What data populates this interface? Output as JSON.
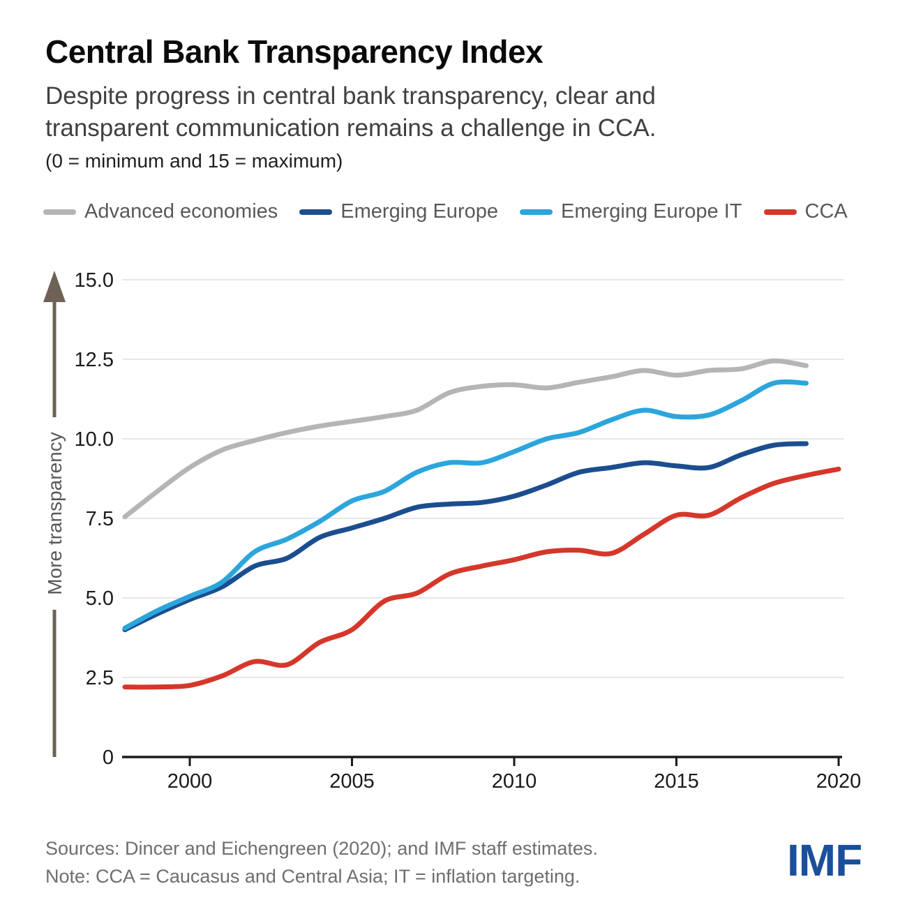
{
  "header": {
    "title": "Central Bank Transparency Index",
    "subtitle_line1": "Despite progress in central bank transparency, clear and",
    "subtitle_line2": "transparent communication remains a challenge in CCA.",
    "scale_note": "(0 = minimum and 15 = maximum)"
  },
  "chart_data": {
    "type": "line",
    "title": "Central Bank Transparency Index",
    "x": [
      1998,
      1999,
      2000,
      2001,
      2002,
      2003,
      2004,
      2005,
      2006,
      2007,
      2008,
      2009,
      2010,
      2011,
      2012,
      2013,
      2014,
      2015,
      2016,
      2017,
      2018,
      2019,
      2020
    ],
    "x_ticks": [
      2000,
      2005,
      2010,
      2015,
      2020
    ],
    "ylim": [
      0,
      15
    ],
    "y_ticks": [
      0,
      2.5,
      5,
      7.5,
      10,
      12.5,
      15
    ],
    "y_tick_labels": [
      "0",
      "2.5",
      "5.0",
      "7.5",
      "10.0",
      "12.5",
      "15.0"
    ],
    "ylabel": "More transparency",
    "grid": "horizontal",
    "legend_position": "top",
    "series": [
      {
        "name": "Advanced economies",
        "color": "#b5b5b5",
        "values": [
          7.55,
          8.35,
          9.1,
          9.65,
          9.95,
          10.2,
          10.4,
          10.55,
          10.7,
          10.9,
          11.45,
          11.65,
          11.7,
          11.6,
          11.78,
          11.95,
          12.15,
          12.0,
          12.15,
          12.2,
          12.45,
          12.3,
          null
        ]
      },
      {
        "name": "Emerging Europe",
        "color": "#1b4e8f",
        "values": [
          4.0,
          4.5,
          4.95,
          5.35,
          6.0,
          6.25,
          6.9,
          7.2,
          7.5,
          7.85,
          7.95,
          8.0,
          8.2,
          8.55,
          8.95,
          9.1,
          9.25,
          9.15,
          9.1,
          9.5,
          9.8,
          9.85,
          null
        ]
      },
      {
        "name": "Emerging Europe IT",
        "color": "#2ca5dc",
        "values": [
          4.05,
          4.6,
          5.05,
          5.5,
          6.45,
          6.85,
          7.4,
          8.05,
          8.35,
          8.95,
          9.25,
          9.25,
          9.6,
          10.0,
          10.2,
          10.6,
          10.9,
          10.7,
          10.75,
          11.2,
          11.75,
          11.75,
          null
        ]
      },
      {
        "name": "CCA",
        "color": "#d5372b",
        "values": [
          2.2,
          2.2,
          2.25,
          2.55,
          3.0,
          2.9,
          3.6,
          4.0,
          4.9,
          5.15,
          5.75,
          6.0,
          6.2,
          6.45,
          6.5,
          6.4,
          7.0,
          7.6,
          7.6,
          8.15,
          8.6,
          8.85,
          9.05
        ]
      }
    ],
    "axis_colors": {
      "axis": "#1a1a1a",
      "grid": "#e7e7e7",
      "arrow": "#6e6156",
      "tick_text": "#1a1a1a",
      "ylabel_text": "#595959"
    }
  },
  "footer": {
    "sources": "Sources: Dincer and Eichengreen (2020); and IMF staff estimates.",
    "note": "Note: CCA = Caucasus and Central Asia; IT = inflation targeting.",
    "logo": "IMF"
  }
}
